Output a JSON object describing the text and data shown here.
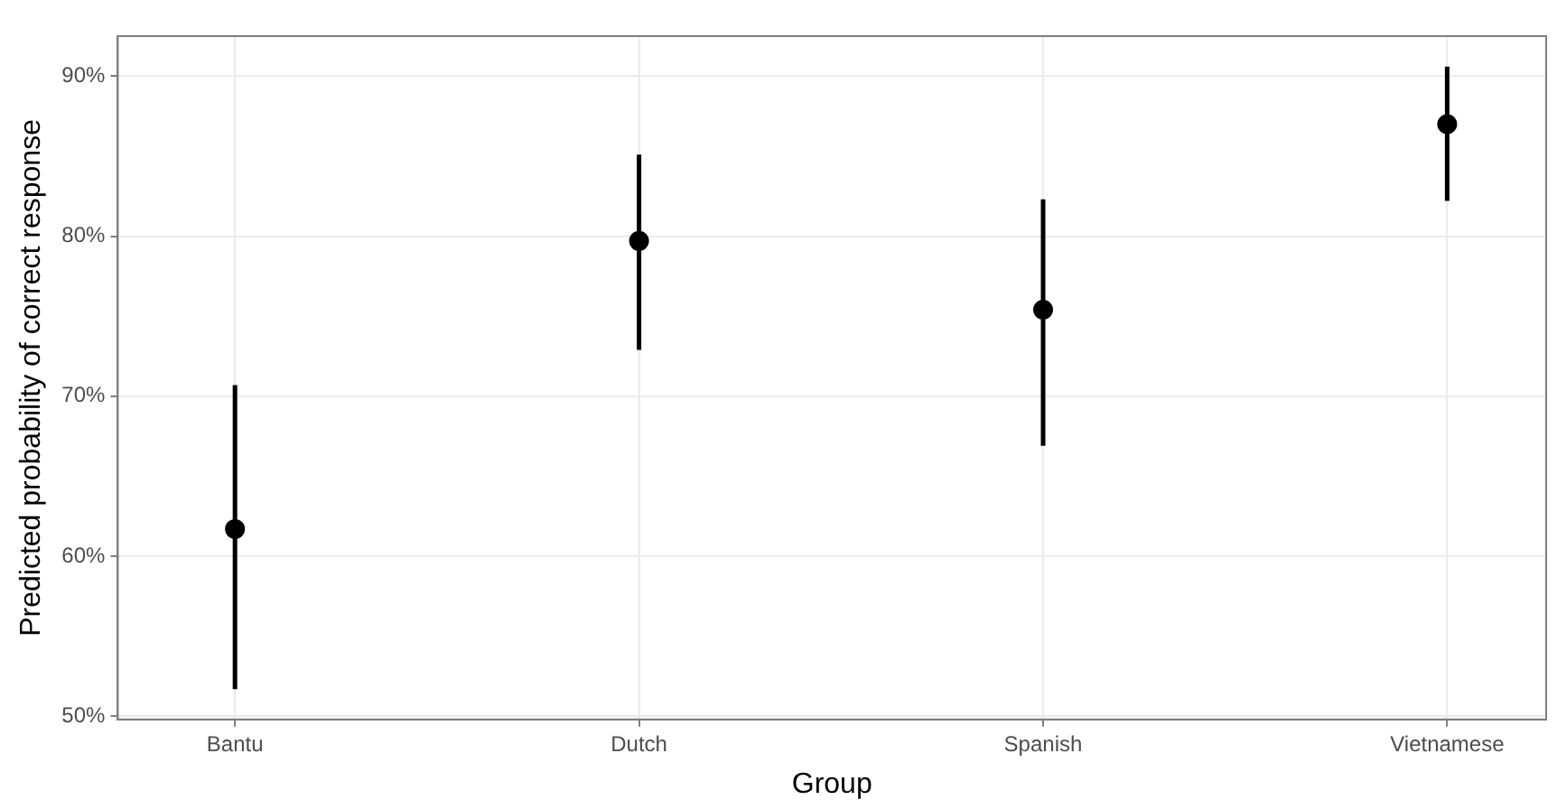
{
  "chart_data": {
    "type": "scatter",
    "xlabel": "Group",
    "ylabel": "Predicted probability of correct response",
    "categories": [
      "Bantu",
      "Dutch",
      "Spanish",
      "Vietnamese"
    ],
    "series": [
      {
        "color": "#000000",
        "values": [
          61.7,
          79.7,
          75.4,
          87.0
        ],
        "errors": [
          [
            51.7,
            70.7
          ],
          [
            72.9,
            85.1
          ],
          [
            66.9,
            82.3
          ],
          [
            82.2,
            90.6
          ]
        ]
      }
    ],
    "ylim": [
      49.8,
      92.5
    ],
    "yticks": [
      {
        "value": 50,
        "label": "50%"
      },
      {
        "value": 60,
        "label": "60%"
      },
      {
        "value": 70,
        "label": "70%"
      },
      {
        "value": 80,
        "label": "80%"
      },
      {
        "value": 90,
        "label": "90%"
      }
    ],
    "grid": true,
    "legend": false,
    "marker": "circle"
  }
}
